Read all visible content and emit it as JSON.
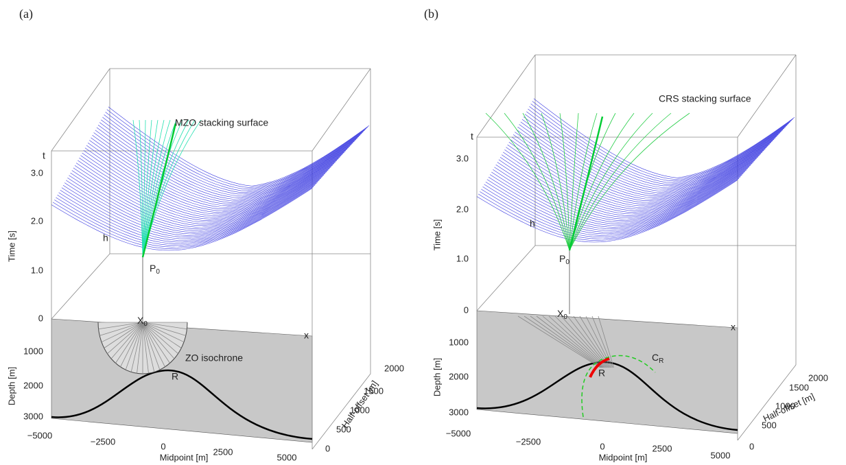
{
  "panels": [
    {
      "label": "(a)",
      "surface_label": "MZO stacking surface",
      "isochrone_label": "ZO isochrone",
      "letters": {
        "t": "t",
        "h": "h",
        "x": "x",
        "r": "R"
      },
      "p0": {
        "main": "P",
        "sub": "0"
      },
      "x0": {
        "main": "X",
        "sub": "0"
      },
      "time_axis": {
        "label": "Time [s]",
        "ticks": [
          "3.0",
          "2.0",
          "1.0",
          "0"
        ]
      },
      "depth_axis": {
        "label": "Depth [m]",
        "ticks": [
          "1000",
          "2000",
          "3000"
        ]
      },
      "midpoint_axis": {
        "label": "Midpoint [m]",
        "ticks": [
          "−5000",
          "−2500",
          "0",
          "2500",
          "5000"
        ]
      },
      "half_offset_axis": {
        "label": "Half-offset [m]",
        "ticks": [
          "0",
          "500",
          "1000",
          "1500",
          "2000"
        ]
      }
    },
    {
      "label": "(b)",
      "surface_label": "CRS stacking surface",
      "letters": {
        "t": "t",
        "h": "h",
        "x": "x",
        "r": "R"
      },
      "p0": {
        "main": "P",
        "sub": "0"
      },
      "x0": {
        "main": "X",
        "sub": "0"
      },
      "cr": {
        "main": "C",
        "sub": "R"
      },
      "time_axis": {
        "label": "Time [s]",
        "ticks": [
          "3.0",
          "2.0",
          "1.0",
          "0"
        ]
      },
      "depth_axis": {
        "label": "Depth [m]",
        "ticks": [
          "1000",
          "2000",
          "3000"
        ]
      },
      "midpoint_axis": {
        "label": "Midpoint [m]",
        "ticks": [
          "−5000",
          "−2500",
          "0",
          "2500",
          "5000"
        ]
      },
      "half_offset_axis": {
        "label": "Half-offset [m]",
        "ticks": [
          "0",
          "500",
          "1000",
          "1500",
          "2000"
        ]
      }
    }
  ]
}
